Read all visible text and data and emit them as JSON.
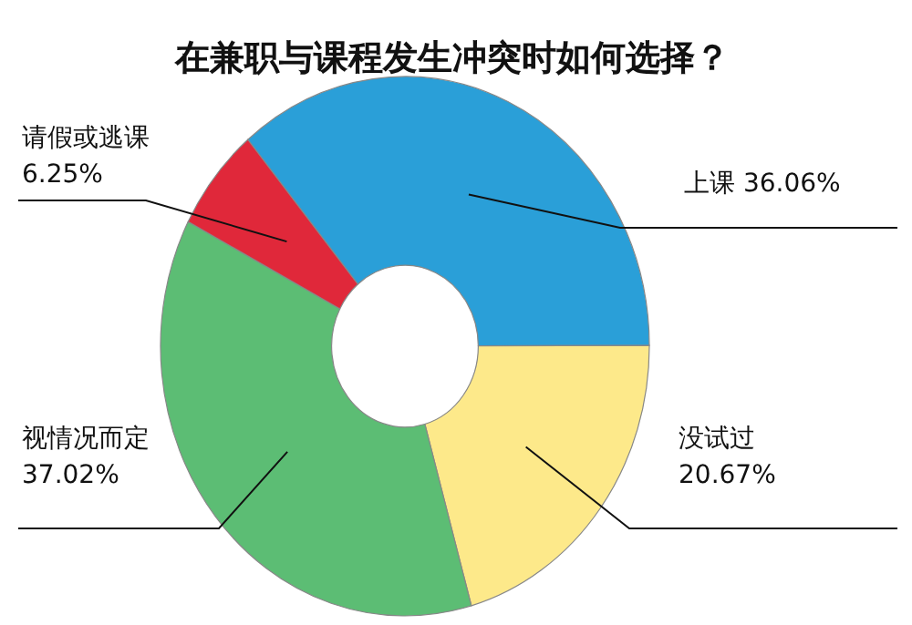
{
  "chart_data": {
    "type": "donut",
    "title": "在兼职与课程发生冲突时如何选择？",
    "categories": [
      "上课",
      "没试过",
      "视情况而定",
      "请假或逃课"
    ],
    "values": [
      36.06,
      20.67,
      37.02,
      6.25
    ],
    "value_labels": [
      "36.06%",
      "20.67%",
      "37.02%",
      "6.25%"
    ],
    "colors": [
      "#2a9fd8",
      "#fde98a",
      "#5cbd74",
      "#e0283a"
    ]
  }
}
